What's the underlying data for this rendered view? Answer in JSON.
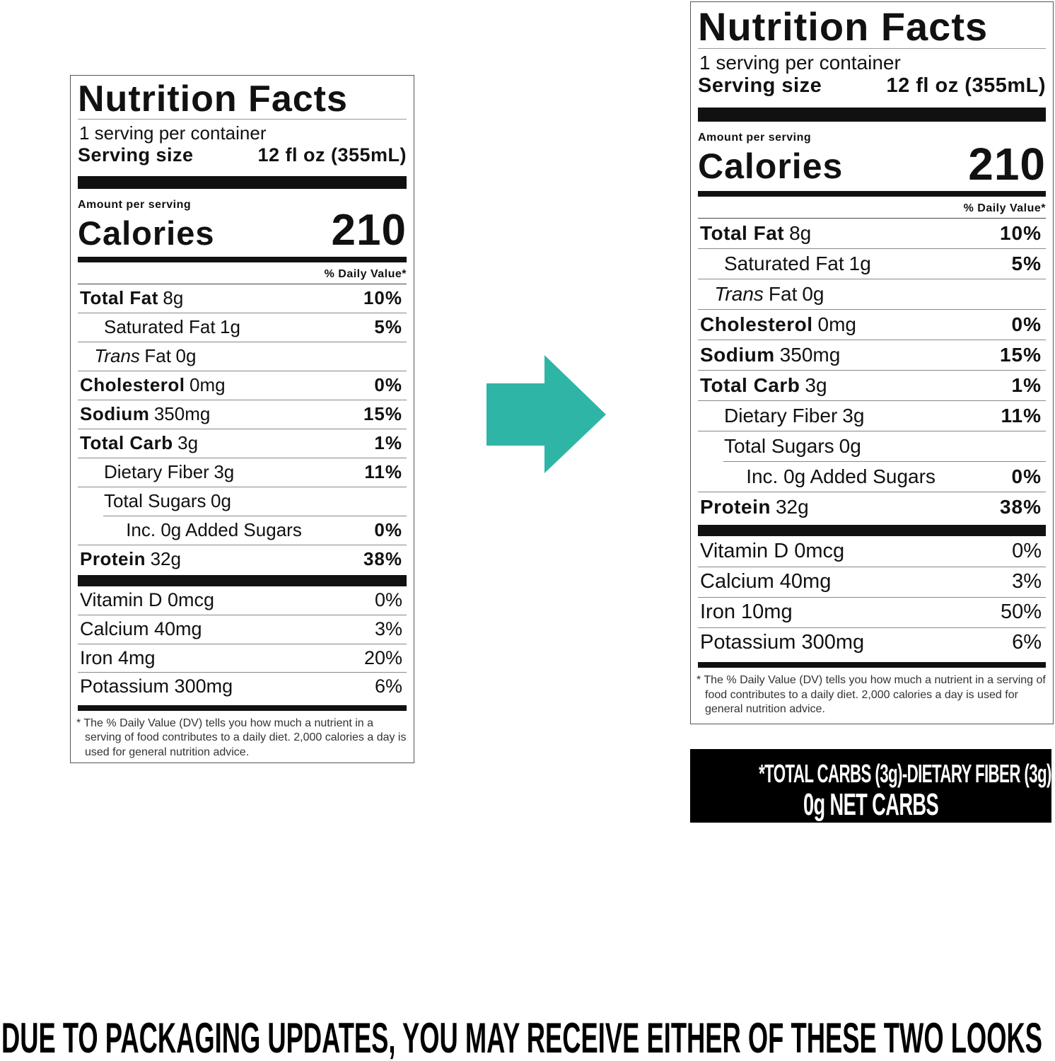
{
  "labels": [
    {
      "title": "Nutrition Facts",
      "servings": "1 serving per container",
      "serving_size_label": "Serving size",
      "serving_size": "12 fl oz (355mL)",
      "amount_per_serving": "Amount per serving",
      "calories_label": "Calories",
      "calories": "210",
      "dv_header": "% Daily Value*",
      "rows": [
        {
          "name": "Total Fat",
          "amount": "8g",
          "dv": "10%"
        },
        {
          "name": "Saturated Fat",
          "amount": "1g",
          "dv": "5%"
        },
        {
          "italic": "Trans",
          "name": "Fat",
          "amount": "0g"
        },
        {
          "name": "Cholesterol",
          "amount": "0mg",
          "dv": "0%"
        },
        {
          "name": "Sodium",
          "amount": "350mg",
          "dv": "15%"
        },
        {
          "name": "Total Carb",
          "amount": "3g",
          "dv": "1%"
        },
        {
          "name": "Dietary Fiber",
          "amount": "3g",
          "dv": "11%"
        },
        {
          "name": "Total Sugars",
          "amount": "0g"
        },
        {
          "name": "Inc. 0g Added Sugars",
          "dv": "0%"
        },
        {
          "name": "Protein",
          "amount": "32g",
          "dv": "38%"
        }
      ],
      "vitamins": [
        {
          "name": "Vitamin D 0mcg",
          "dv": "0%"
        },
        {
          "name": "Calcium 40mg",
          "dv": "3%"
        },
        {
          "name": "Iron 4mg",
          "dv": "20%"
        },
        {
          "name": "Potassium 300mg",
          "dv": "6%"
        }
      ],
      "footnote": "* The % Daily Value (DV) tells you how much a nutrient in a serving of food contributes to a daily diet. 2,000 calories a day is used for general nutrition advice."
    },
    {
      "title": "Nutrition Facts",
      "servings": "1 serving per container",
      "serving_size_label": "Serving size",
      "serving_size": "12 fl oz (355mL)",
      "amount_per_serving": "Amount per serving",
      "calories_label": "Calories",
      "calories": "210",
      "dv_header": "% Daily Value*",
      "rows": [
        {
          "name": "Total Fat",
          "amount": "8g",
          "dv": "10%"
        },
        {
          "name": "Saturated Fat",
          "amount": "1g",
          "dv": "5%"
        },
        {
          "italic": "Trans",
          "name": "Fat",
          "amount": "0g"
        },
        {
          "name": "Cholesterol",
          "amount": "0mg",
          "dv": "0%"
        },
        {
          "name": "Sodium",
          "amount": "350mg",
          "dv": "15%"
        },
        {
          "name": "Total Carb",
          "amount": "3g",
          "dv": "1%"
        },
        {
          "name": "Dietary Fiber",
          "amount": "3g",
          "dv": "11%"
        },
        {
          "name": "Total Sugars",
          "amount": "0g"
        },
        {
          "name": "Inc. 0g Added Sugars",
          "dv": "0%"
        },
        {
          "name": "Protein",
          "amount": "32g",
          "dv": "38%"
        }
      ],
      "vitamins": [
        {
          "name": "Vitamin D 0mcg",
          "dv": "0%"
        },
        {
          "name": "Calcium 40mg",
          "dv": "3%"
        },
        {
          "name": "Iron 10mg",
          "dv": "50%"
        },
        {
          "name": "Potassium 300mg",
          "dv": "6%"
        }
      ],
      "footnote": "* The % Daily Value (DV) tells you how much a nutrient in a serving of food contributes to a daily diet. 2,000 calories a day is used for general nutrition advice."
    }
  ],
  "net_carbs": {
    "line1": "*TOTAL CARBS (3g)-DIETARY FIBER (3g)=",
    "line2": "0g NET CARBS"
  },
  "banner": "DUE TO PACKAGING UPDATES, YOU MAY RECEIVE EITHER OF THESE TWO LOOKS"
}
